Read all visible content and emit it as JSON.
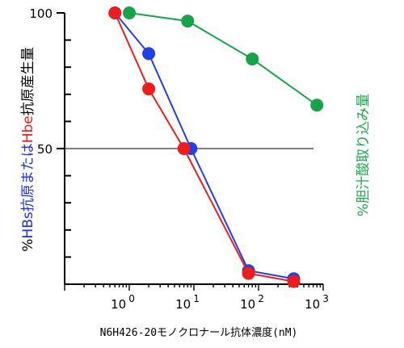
{
  "chart_data": {
    "type": "line",
    "x_scale": "log",
    "xlim": [
      0.1,
      1000
    ],
    "ylim": [
      0,
      100
    ],
    "grid": false,
    "xlabel": "N6H426-20モノクロナール抗体濃度(nM)",
    "x_tick_labels": [
      {
        "x": 1,
        "base": "10",
        "exp": "0"
      },
      {
        "x": 10,
        "base": "10",
        "exp": "1"
      },
      {
        "x": 100,
        "base": "10",
        "exp": "2"
      },
      {
        "x": 1000,
        "base": "10",
        "exp": "3"
      }
    ],
    "y_ticks": [
      100,
      50
    ],
    "y_tick_labels": [
      "100",
      "50"
    ],
    "y_unlabeled_ticks": [
      0,
      10,
      20,
      30,
      40,
      60,
      70,
      80,
      90
    ],
    "reference_line": 50,
    "ylabel_left": [
      {
        "text": "%",
        "color": "#000000"
      },
      {
        "text": "HBs",
        "color": "#1a2ee6"
      },
      {
        "text": "抗原または",
        "color": "#1a2ee6"
      },
      {
        "text": "Hbe",
        "color": "#e61a1a"
      },
      {
        "text": "抗原産生量",
        "color": "#000000"
      }
    ],
    "ylabel_right": [
      {
        "text": "%",
        "color": "#18a84a"
      },
      {
        "text": "胆汁酸取り込み量",
        "color": "#18a84a"
      }
    ],
    "series": [
      {
        "color": "#16a34a",
        "x": [
          1,
          8,
          80,
          800
        ],
        "y": [
          100,
          97,
          83,
          66
        ]
      },
      {
        "color": "#1f3fe8",
        "x": [
          0.6,
          2,
          9,
          70,
          350
        ],
        "y": [
          100,
          85,
          50,
          5,
          2
        ]
      },
      {
        "color": "#ee1c1c",
        "x": [
          0.6,
          2,
          7,
          70,
          350
        ],
        "y": [
          100,
          72,
          50,
          4,
          1
        ]
      }
    ]
  }
}
